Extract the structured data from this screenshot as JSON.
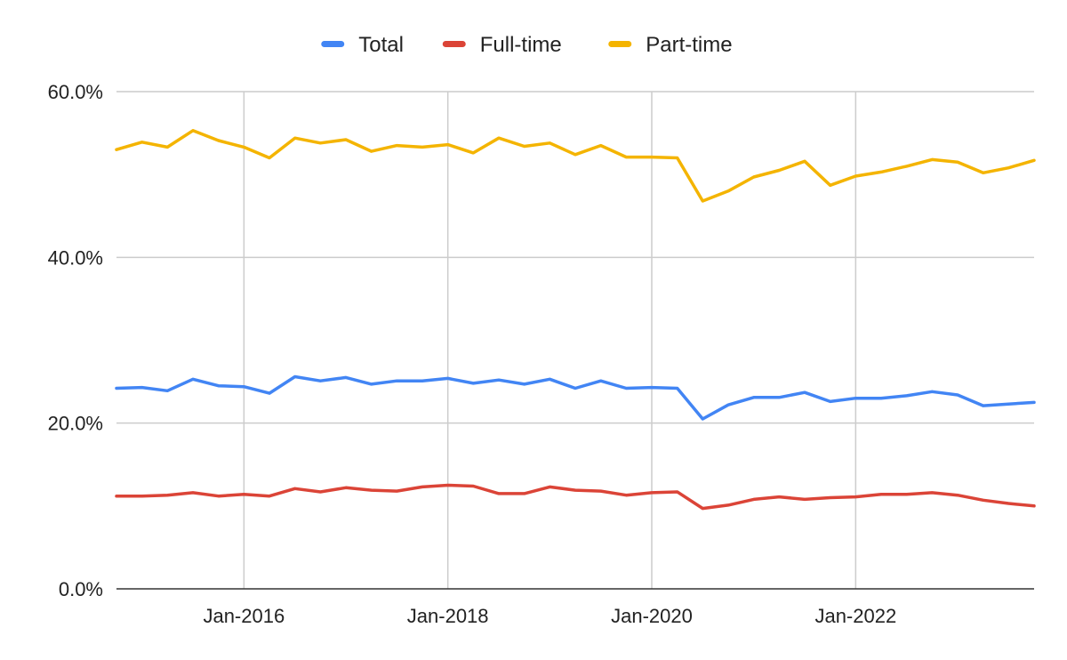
{
  "chart_data": {
    "type": "line",
    "title": "",
    "xlabel": "",
    "ylabel": "",
    "legend_position": "top",
    "grid": true,
    "ylim": [
      0,
      60
    ],
    "y_ticks": [
      "0.0%",
      "20.0%",
      "40.0%",
      "60.0%"
    ],
    "x_ticks": [
      "Jan-2016",
      "Jan-2018",
      "Jan-2020",
      "Jan-2022"
    ],
    "x": [
      "Oct-2014",
      "Jan-2015",
      "Apr-2015",
      "Jul-2015",
      "Oct-2015",
      "Jan-2016",
      "Apr-2016",
      "Jul-2016",
      "Oct-2016",
      "Jan-2017",
      "Apr-2017",
      "Jul-2017",
      "Oct-2017",
      "Jan-2018",
      "Apr-2018",
      "Jul-2018",
      "Oct-2018",
      "Jan-2019",
      "Apr-2019",
      "Jul-2019",
      "Oct-2019",
      "Jan-2020",
      "Apr-2020",
      "Jul-2020",
      "Oct-2020",
      "Jan-2021",
      "Apr-2021",
      "Jul-2021",
      "Oct-2021",
      "Jan-2022",
      "Apr-2022",
      "Jul-2022",
      "Oct-2022",
      "Jan-2023",
      "Apr-2023",
      "Jul-2023",
      "Oct-2023"
    ],
    "series": [
      {
        "name": "Total",
        "color": "#4285F4",
        "values": [
          24.2,
          24.3,
          23.9,
          25.3,
          24.5,
          24.4,
          23.6,
          25.6,
          25.1,
          25.5,
          24.7,
          25.1,
          25.1,
          25.4,
          24.8,
          25.2,
          24.7,
          25.3,
          24.2,
          25.1,
          24.2,
          24.3,
          24.2,
          20.5,
          22.2,
          23.1,
          23.1,
          23.7,
          22.6,
          23.0,
          23.0,
          23.3,
          23.8,
          23.4,
          22.1,
          22.3,
          22.5
        ]
      },
      {
        "name": "Full-time",
        "color": "#DB4437",
        "values": [
          11.2,
          11.2,
          11.3,
          11.6,
          11.2,
          11.4,
          11.2,
          12.1,
          11.7,
          12.2,
          11.9,
          11.8,
          12.3,
          12.5,
          12.4,
          11.5,
          11.5,
          12.3,
          11.9,
          11.8,
          11.3,
          11.6,
          11.7,
          9.7,
          10.1,
          10.8,
          11.1,
          10.8,
          11.0,
          11.1,
          11.4,
          11.4,
          11.6,
          11.3,
          10.7,
          10.3,
          10.0
        ]
      },
      {
        "name": "Part-time",
        "color": "#F4B400",
        "values": [
          53.0,
          53.9,
          53.3,
          55.3,
          54.1,
          53.3,
          52.0,
          54.4,
          53.8,
          54.2,
          52.8,
          53.5,
          53.3,
          53.6,
          52.6,
          54.4,
          53.4,
          53.8,
          52.4,
          53.5,
          52.1,
          52.1,
          52.0,
          46.8,
          48.0,
          49.7,
          50.5,
          51.6,
          48.7,
          49.8,
          50.3,
          51.0,
          51.8,
          51.5,
          50.2,
          50.8,
          51.7
        ]
      }
    ]
  }
}
